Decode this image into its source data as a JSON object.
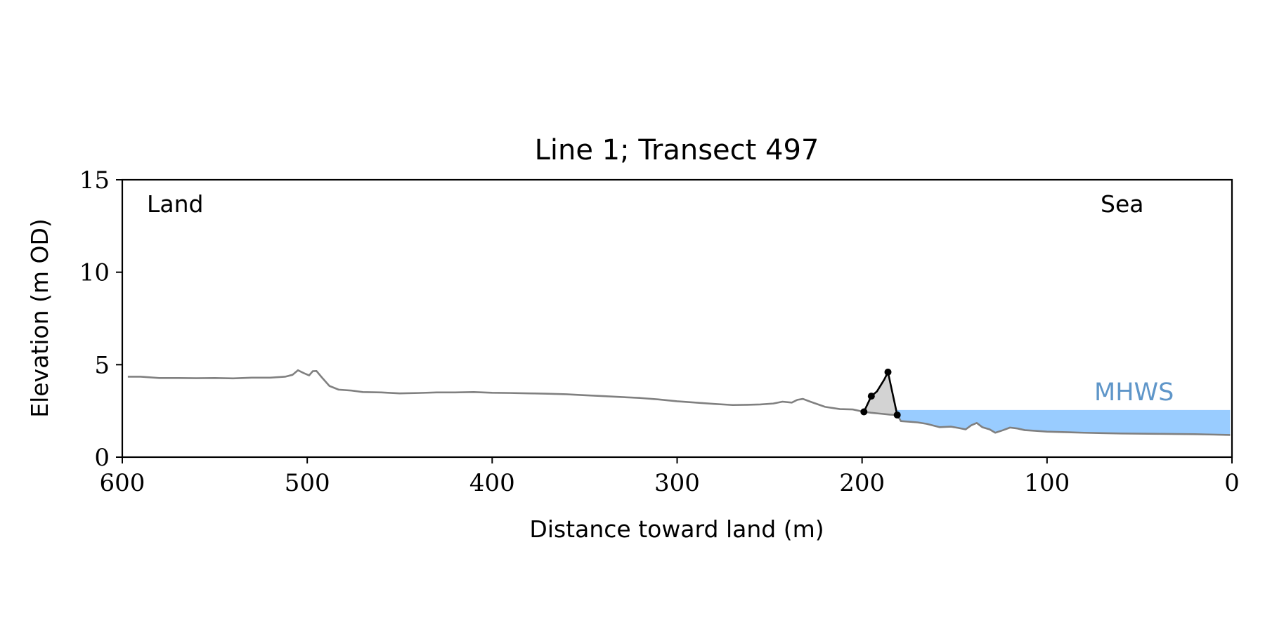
{
  "chart_data": {
    "type": "line",
    "title": "Line 1; Transect 497",
    "xlabel": "Distance toward land (m)",
    "ylabel": "Elevation (m OD)",
    "xlim": [
      600,
      0
    ],
    "ylim": [
      0,
      15
    ],
    "x_ticks": [
      600,
      500,
      400,
      300,
      200,
      100,
      0
    ],
    "y_ticks": [
      0,
      5,
      10,
      15
    ],
    "grid": false,
    "annotations": {
      "land": "Land",
      "sea": "Sea",
      "mhws": "MHWS"
    },
    "mhws_level": 2.55,
    "series": [
      {
        "role": "ground-profile",
        "color": "#808080",
        "points": [
          [
            597,
            4.35
          ],
          [
            590,
            4.35
          ],
          [
            580,
            4.28
          ],
          [
            570,
            4.28
          ],
          [
            560,
            4.27
          ],
          [
            550,
            4.28
          ],
          [
            540,
            4.26
          ],
          [
            530,
            4.3
          ],
          [
            520,
            4.3
          ],
          [
            512,
            4.35
          ],
          [
            508,
            4.45
          ],
          [
            505,
            4.7
          ],
          [
            502,
            4.55
          ],
          [
            499,
            4.42
          ],
          [
            497,
            4.65
          ],
          [
            495,
            4.66
          ],
          [
            492,
            4.3
          ],
          [
            488,
            3.85
          ],
          [
            483,
            3.65
          ],
          [
            476,
            3.6
          ],
          [
            470,
            3.52
          ],
          [
            460,
            3.5
          ],
          [
            450,
            3.45
          ],
          [
            440,
            3.47
          ],
          [
            430,
            3.5
          ],
          [
            420,
            3.5
          ],
          [
            410,
            3.52
          ],
          [
            400,
            3.48
          ],
          [
            390,
            3.47
          ],
          [
            380,
            3.45
          ],
          [
            370,
            3.43
          ],
          [
            360,
            3.4
          ],
          [
            350,
            3.35
          ],
          [
            340,
            3.3
          ],
          [
            330,
            3.25
          ],
          [
            320,
            3.2
          ],
          [
            310,
            3.12
          ],
          [
            300,
            3.02
          ],
          [
            290,
            2.95
          ],
          [
            280,
            2.88
          ],
          [
            270,
            2.82
          ],
          [
            262,
            2.83
          ],
          [
            255,
            2.85
          ],
          [
            248,
            2.9
          ],
          [
            243,
            3.0
          ],
          [
            238,
            2.95
          ],
          [
            235,
            3.1
          ],
          [
            232,
            3.15
          ],
          [
            228,
            3.0
          ],
          [
            220,
            2.72
          ],
          [
            212,
            2.6
          ],
          [
            205,
            2.58
          ],
          [
            199,
            2.45
          ],
          [
            195,
            2.4
          ],
          [
            190,
            2.35
          ],
          [
            185,
            2.3
          ],
          [
            181,
            2.28
          ],
          [
            179,
            1.95
          ],
          [
            175,
            1.92
          ],
          [
            170,
            1.88
          ],
          [
            165,
            1.8
          ],
          [
            158,
            1.62
          ],
          [
            152,
            1.65
          ],
          [
            148,
            1.58
          ],
          [
            144,
            1.5
          ],
          [
            141,
            1.72
          ],
          [
            138,
            1.85
          ],
          [
            135,
            1.62
          ],
          [
            131,
            1.5
          ],
          [
            128,
            1.32
          ],
          [
            124,
            1.45
          ],
          [
            120,
            1.6
          ],
          [
            116,
            1.55
          ],
          [
            112,
            1.46
          ],
          [
            106,
            1.42
          ],
          [
            100,
            1.38
          ],
          [
            90,
            1.35
          ],
          [
            80,
            1.32
          ],
          [
            70,
            1.3
          ],
          [
            60,
            1.28
          ],
          [
            50,
            1.27
          ],
          [
            40,
            1.26
          ],
          [
            30,
            1.25
          ],
          [
            20,
            1.24
          ],
          [
            10,
            1.22
          ],
          [
            1,
            1.2
          ]
        ]
      },
      {
        "role": "dune-profile",
        "color": "#000000",
        "points": [
          [
            199,
            2.45
          ],
          [
            195,
            3.3
          ],
          [
            192,
            3.55
          ],
          [
            188,
            4.2
          ],
          [
            186,
            4.6
          ],
          [
            181,
            2.28
          ]
        ],
        "markers": [
          [
            199,
            2.45
          ],
          [
            195,
            3.3
          ],
          [
            186,
            4.6
          ],
          [
            181,
            2.28
          ]
        ]
      }
    ],
    "colors": {
      "profile": "#808080",
      "dune": "#000000",
      "dune_fill": "#d3d3d3",
      "sea_fill": "#99ccff",
      "mhws_text": "#5f96c9"
    }
  }
}
